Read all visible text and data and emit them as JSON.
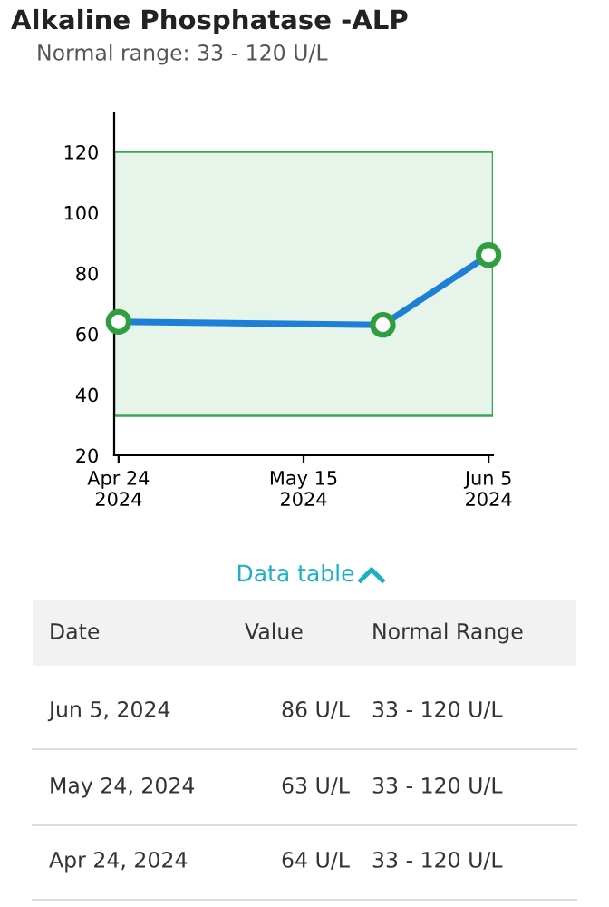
{
  "chart_data": {
    "type": "line",
    "title": "Alkaline Phosphatase -ALP",
    "subtitle": "Normal range: 33 - 120 U/L",
    "x": [
      "2024-04-24",
      "2024-05-24",
      "2024-06-05"
    ],
    "series": [
      {
        "color": "#1e7fd6",
        "values": [
          64,
          63,
          86
        ]
      }
    ],
    "xlim": [
      "2024-04-23T12:00",
      "2024-06-05T12:00"
    ],
    "xticks": [
      {
        "value": "2024-04-24",
        "label": "Apr 24\n2024"
      },
      {
        "value": "2024-05-15",
        "label": "May 15\n2024"
      },
      {
        "value": "2024-06-05",
        "label": "Jun 5\n2024"
      }
    ],
    "ylim": [
      20,
      133
    ],
    "yticks": [
      20,
      40,
      60,
      80,
      100,
      120
    ],
    "bands": [
      {
        "axis": "y",
        "from": 33,
        "to": 120,
        "color": "#3aa655"
      }
    ],
    "marker": "circle",
    "grid": false,
    "annotations": [
      "Data table",
      "Date",
      "Value",
      "Normal Range",
      "Jun 5, 2024",
      "86 U/L",
      "33 - 120 U/L",
      "May 24, 2024",
      "63 U/L",
      "33 - 120 U/L",
      "Apr 24, 2024",
      "64 U/L",
      "33 - 120 U/L"
    ]
  }
}
